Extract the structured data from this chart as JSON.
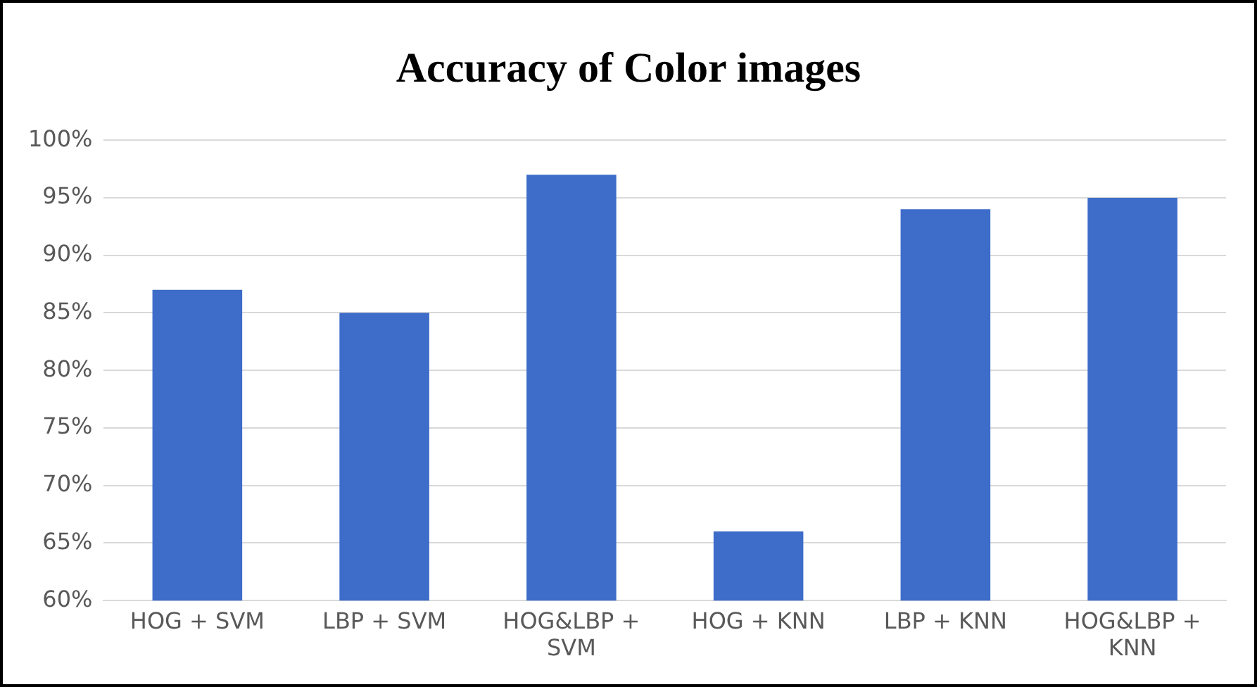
{
  "chart_data": {
    "type": "bar",
    "title": "Accuracy of Color images",
    "categories": [
      "HOG + SVM",
      "LBP + SVM",
      "HOG&LBP + SVM",
      "HOG + KNN",
      "LBP + KNN",
      "HOG&LBP + KNN"
    ],
    "values": [
      87,
      85,
      97,
      66,
      94,
      95
    ],
    "color": "#3d6cc9",
    "ylim": [
      60,
      100
    ],
    "yticks": [
      {
        "value": 60,
        "label": "60%"
      },
      {
        "value": 65,
        "label": "65%"
      },
      {
        "value": 70,
        "label": "70%"
      },
      {
        "value": 75,
        "label": "75%"
      },
      {
        "value": 80,
        "label": "80%"
      },
      {
        "value": 85,
        "label": "85%"
      },
      {
        "value": 90,
        "label": "90%"
      },
      {
        "value": 95,
        "label": "95%"
      },
      {
        "value": 100,
        "label": "100%"
      }
    ],
    "grid": "y",
    "legend": false
  }
}
